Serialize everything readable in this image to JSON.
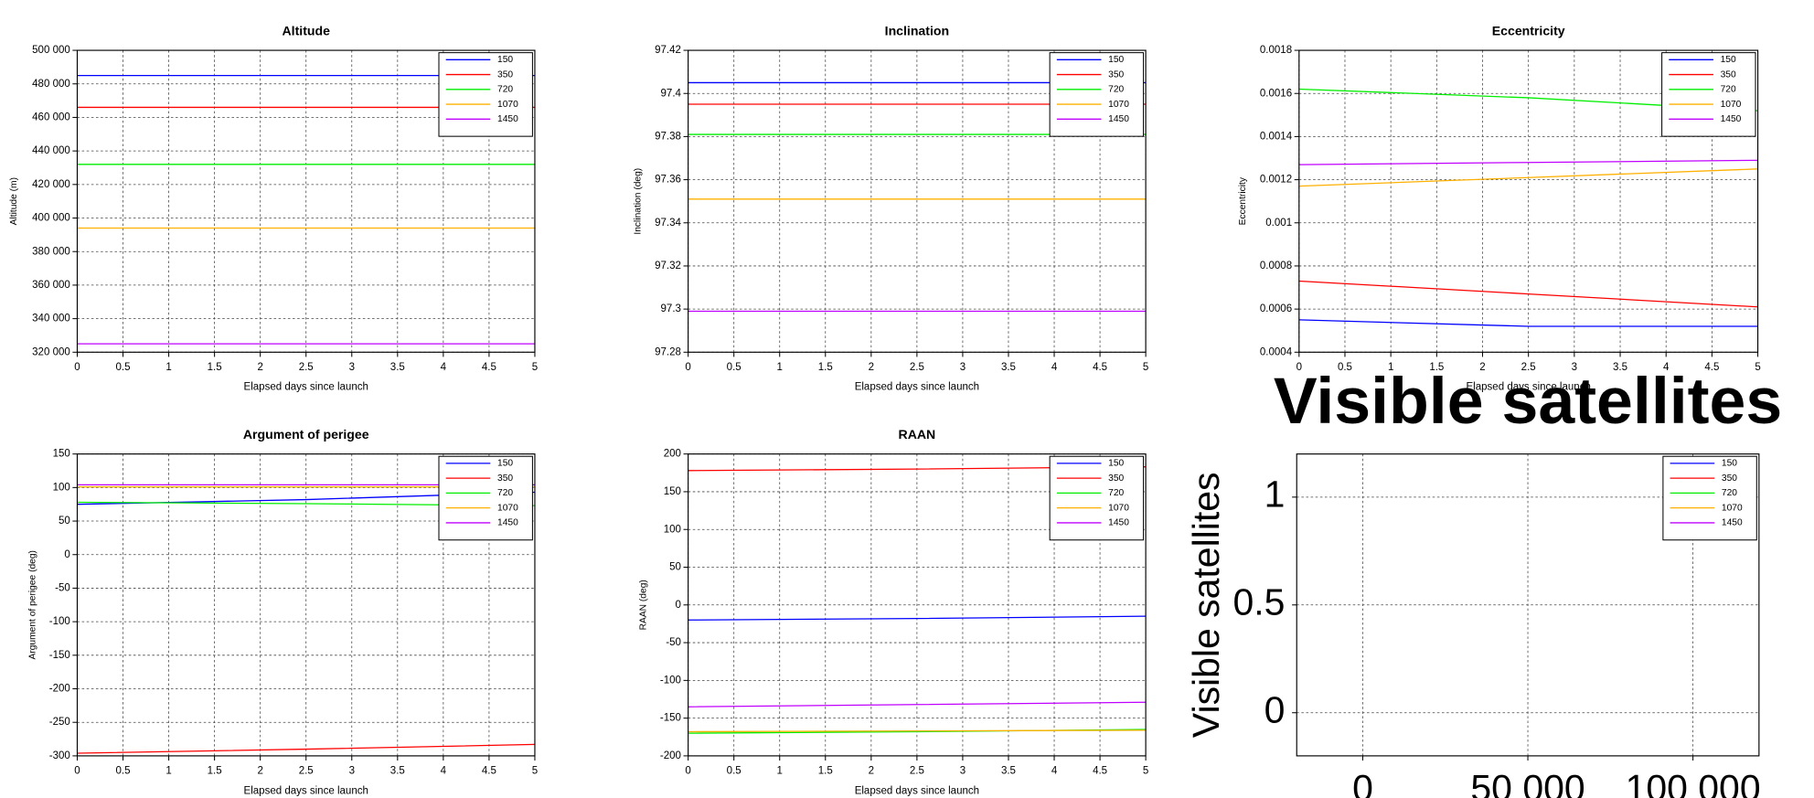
{
  "chart_data": [
    {
      "type": "line",
      "title": "Altitude",
      "xlabel": "Elapsed days since launch",
      "ylabel": "Altitude (m)",
      "x": [
        0,
        2.5,
        5
      ],
      "xlim": [
        0,
        5
      ],
      "xticks": [
        0,
        0.5,
        1,
        1.5,
        2,
        2.5,
        3,
        3.5,
        4,
        4.5,
        5
      ],
      "ylim": [
        320000,
        500000
      ],
      "yticks": [
        {
          "value": 320000,
          "label": "320 000"
        },
        {
          "value": 340000,
          "label": "340 000"
        },
        {
          "value": 360000,
          "label": "360 000"
        },
        {
          "value": 380000,
          "label": "380 000"
        },
        {
          "value": 400000,
          "label": "400 000"
        },
        {
          "value": 420000,
          "label": "420 000"
        },
        {
          "value": 440000,
          "label": "440 000"
        },
        {
          "value": 460000,
          "label": "460 000"
        },
        {
          "value": 480000,
          "label": "480 000"
        },
        {
          "value": 500000,
          "label": "500 000"
        }
      ],
      "grid": true,
      "legend": "upper right",
      "series": [
        {
          "name": "150",
          "color": "#0000ff",
          "values": [
            485000,
            485000,
            485000
          ]
        },
        {
          "name": "350",
          "color": "#ff0000",
          "values": [
            466000,
            466000,
            466000
          ]
        },
        {
          "name": "720",
          "color": "#00ee00",
          "values": [
            432000,
            432000,
            432000
          ]
        },
        {
          "name": "1070",
          "color": "#ffb000",
          "values": [
            394000,
            394000,
            394000
          ]
        },
        {
          "name": "1450",
          "color": "#c000ff",
          "values": [
            325000,
            325000,
            325000
          ]
        }
      ]
    },
    {
      "type": "line",
      "title": "Inclination",
      "xlabel": "Elapsed days since launch",
      "ylabel": "Inclination (deg)",
      "x": [
        0,
        2.5,
        5
      ],
      "xlim": [
        0,
        5
      ],
      "xticks": [
        0,
        0.5,
        1,
        1.5,
        2,
        2.5,
        3,
        3.5,
        4,
        4.5,
        5
      ],
      "ylim": [
        97.28,
        97.42
      ],
      "yticks": [
        97.28,
        97.3,
        97.32,
        97.34,
        97.36,
        97.38,
        97.4,
        97.42
      ],
      "grid": true,
      "legend": "upper right",
      "series": [
        {
          "name": "150",
          "color": "#0000ff",
          "values": [
            97.405,
            97.405,
            97.405
          ]
        },
        {
          "name": "350",
          "color": "#ff0000",
          "values": [
            97.395,
            97.395,
            97.395
          ]
        },
        {
          "name": "720",
          "color": "#00ee00",
          "values": [
            97.381,
            97.381,
            97.381
          ]
        },
        {
          "name": "1070",
          "color": "#ffb000",
          "values": [
            97.351,
            97.351,
            97.351
          ]
        },
        {
          "name": "1450",
          "color": "#c000ff",
          "values": [
            97.299,
            97.299,
            97.299
          ]
        }
      ]
    },
    {
      "type": "line",
      "title": "Eccentricity",
      "xlabel": "Elapsed days since launch",
      "ylabel": "Eccentricity",
      "x": [
        0,
        2.5,
        5
      ],
      "xlim": [
        0,
        5
      ],
      "xticks": [
        0,
        0.5,
        1,
        1.5,
        2,
        2.5,
        3,
        3.5,
        4,
        4.5,
        5
      ],
      "ylim": [
        0.0004,
        0.0018
      ],
      "yticks": [
        0.0004,
        0.0006,
        0.0008,
        0.001,
        0.0012,
        0.0014,
        0.0016,
        0.0018
      ],
      "grid": true,
      "legend": "upper right",
      "series": [
        {
          "name": "150",
          "color": "#0000ff",
          "values": [
            0.00055,
            0.00052,
            0.00052
          ]
        },
        {
          "name": "350",
          "color": "#ff0000",
          "values": [
            0.00073,
            0.00067,
            0.00061
          ]
        },
        {
          "name": "720",
          "color": "#00ee00",
          "values": [
            0.00162,
            0.00158,
            0.00152
          ]
        },
        {
          "name": "1070",
          "color": "#ffb000",
          "values": [
            0.00117,
            0.00121,
            0.00125
          ]
        },
        {
          "name": "1450",
          "color": "#c000ff",
          "values": [
            0.00127,
            0.00128,
            0.00129
          ]
        }
      ]
    },
    {
      "type": "line",
      "title": "Argument of perigee",
      "xlabel": "Elapsed days since launch",
      "ylabel": "Argument of perigee (deg)",
      "x": [
        0,
        2.5,
        5
      ],
      "xlim": [
        0,
        5
      ],
      "xticks": [
        0,
        0.5,
        1,
        1.5,
        2,
        2.5,
        3,
        3.5,
        4,
        4.5,
        5
      ],
      "ylim": [
        -300,
        150
      ],
      "yticks": [
        -300,
        -250,
        -200,
        -150,
        -100,
        -50,
        0,
        50,
        100,
        150
      ],
      "grid": true,
      "legend": "upper right",
      "series": [
        {
          "name": "150",
          "color": "#0000ff",
          "values": [
            75,
            82,
            93
          ]
        },
        {
          "name": "350",
          "color": "#ff0000",
          "values": [
            -296,
            -290,
            -283
          ]
        },
        {
          "name": "720",
          "color": "#00ee00",
          "values": [
            78,
            76,
            73
          ]
        },
        {
          "name": "1070",
          "color": "#ffb000",
          "values": [
            101,
            101,
            101
          ]
        },
        {
          "name": "1450",
          "color": "#c000ff",
          "values": [
            104,
            104,
            104
          ]
        }
      ]
    },
    {
      "type": "line",
      "title": "RAAN",
      "xlabel": "Elapsed days since launch",
      "ylabel": "RAAN (deg)",
      "x": [
        0,
        2.5,
        5
      ],
      "xlim": [
        0,
        5
      ],
      "xticks": [
        0,
        0.5,
        1,
        1.5,
        2,
        2.5,
        3,
        3.5,
        4,
        4.5,
        5
      ],
      "ylim": [
        -200,
        200
      ],
      "yticks": [
        -200,
        -150,
        -100,
        -50,
        0,
        50,
        100,
        150,
        200
      ],
      "grid": true,
      "legend": "upper right",
      "series": [
        {
          "name": "150",
          "color": "#0000ff",
          "values": [
            -20,
            -18,
            -15
          ]
        },
        {
          "name": "350",
          "color": "#ff0000",
          "values": [
            178,
            180,
            183
          ]
        },
        {
          "name": "720",
          "color": "#00ee00",
          "values": [
            -170,
            -168,
            -165
          ]
        },
        {
          "name": "1070",
          "color": "#ffb000",
          "values": [
            -168,
            -167,
            -166
          ]
        },
        {
          "name": "1450",
          "color": "#c000ff",
          "values": [
            -135,
            -132,
            -129
          ]
        }
      ]
    },
    {
      "type": "line",
      "title": "Visible satellites",
      "ylabel": "Visible satellites",
      "x": [],
      "xlim": [
        -20000,
        120000
      ],
      "xticks": [
        0,
        {
          "value": 50000,
          "label": "50 000"
        },
        {
          "value": 100000,
          "label": "100 000"
        }
      ],
      "ylim": [
        -0.2,
        1.2
      ],
      "yticks": [
        0,
        0.5,
        1
      ],
      "grid": true,
      "legend": "upper right",
      "series": [
        {
          "name": "150",
          "color": "#0000ff",
          "values": []
        },
        {
          "name": "350",
          "color": "#ff0000",
          "values": []
        },
        {
          "name": "720",
          "color": "#00ee00",
          "values": []
        },
        {
          "name": "1070",
          "color": "#ffb000",
          "values": []
        },
        {
          "name": "1450",
          "color": "#c000ff",
          "values": []
        }
      ]
    }
  ]
}
